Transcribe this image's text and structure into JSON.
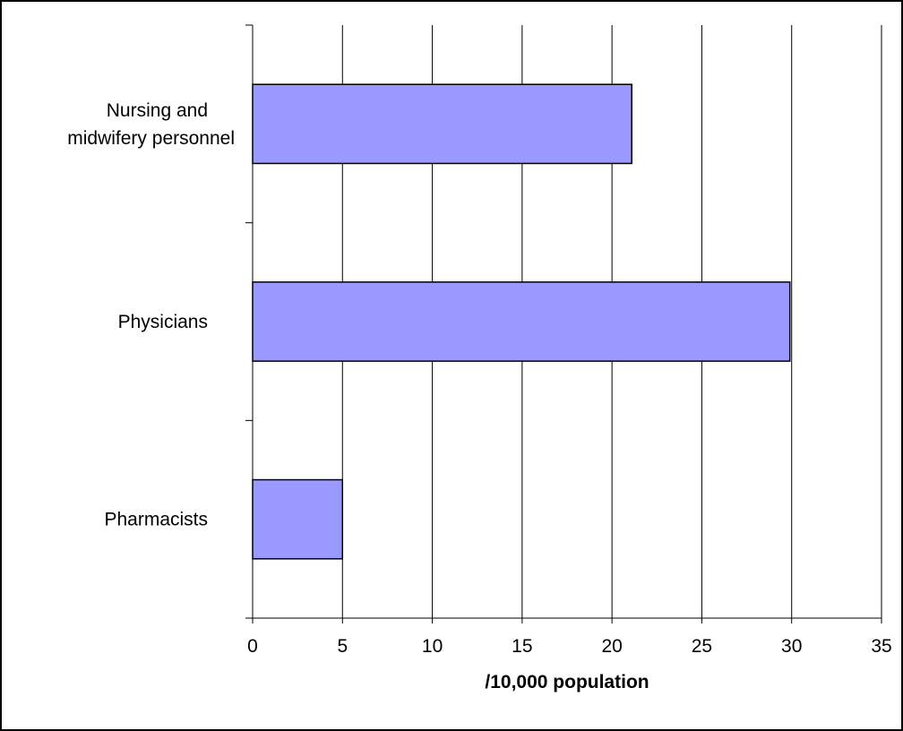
{
  "chart_data": {
    "type": "bar",
    "orientation": "horizontal",
    "categories": [
      "Nursing and\nmidwifery personnel",
      "Physicians",
      "Pharmacists"
    ],
    "values": [
      21.1,
      29.9,
      5.0
    ],
    "xlabel": "/10,000 population",
    "ylabel": "",
    "xlim": [
      0,
      35
    ],
    "xticks": [
      0,
      5,
      10,
      15,
      20,
      25,
      30,
      35
    ],
    "grid": "vertical",
    "bar_color": "#9999ff",
    "bar_edge_color": "#000000"
  }
}
